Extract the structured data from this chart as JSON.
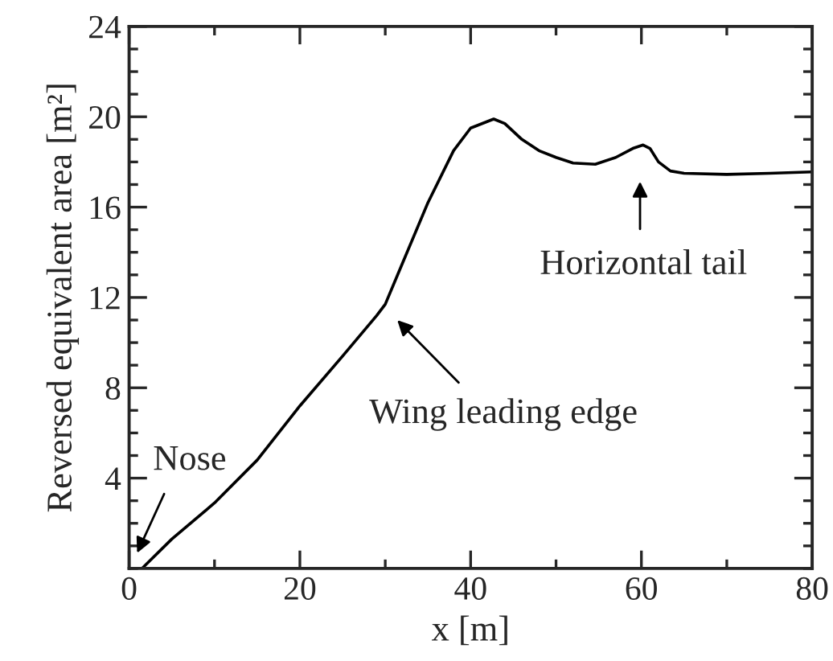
{
  "chart_data": {
    "type": "line",
    "xlabel": "x [m]",
    "ylabel": "Reversed equivalent area [m²]",
    "xlim": [
      0,
      80
    ],
    "ylim": [
      0,
      24
    ],
    "xticks": [
      0,
      {
        "value": 10,
        "label": null
      },
      20,
      {
        "value": 30,
        "label": null
      },
      40,
      {
        "value": 50,
        "label": null
      },
      60,
      {
        "value": 70,
        "label": null
      },
      80
    ],
    "yticks": [
      {
        "value": 0,
        "label": null
      },
      {
        "value": 1,
        "label": null
      },
      {
        "value": 2,
        "label": null
      },
      {
        "value": 3,
        "label": null
      },
      4,
      {
        "value": 5,
        "label": null
      },
      {
        "value": 6,
        "label": null
      },
      {
        "value": 7,
        "label": null
      },
      8,
      {
        "value": 9,
        "label": null
      },
      {
        "value": 10,
        "label": null
      },
      {
        "value": 11,
        "label": null
      },
      12,
      {
        "value": 13,
        "label": null
      },
      {
        "value": 14,
        "label": null
      },
      {
        "value": 15,
        "label": null
      },
      16,
      {
        "value": 17,
        "label": null
      },
      {
        "value": 18,
        "label": null
      },
      {
        "value": 19,
        "label": null
      },
      20,
      {
        "value": 21,
        "label": null
      },
      {
        "value": 22,
        "label": null
      },
      {
        "value": 23,
        "label": null
      },
      24
    ],
    "grid": false,
    "legend": false,
    "marker": "none",
    "line_style": "solid",
    "series": [
      {
        "color": "#000000",
        "x": [
          1.5,
          5,
          10,
          15,
          20,
          25,
          29,
          30,
          32,
          35,
          38,
          40,
          42.7,
          44,
          46,
          48,
          50,
          52,
          54.6,
          57,
          59,
          60.2,
          61,
          62,
          63.4,
          65,
          70,
          75,
          80
        ],
        "values": [
          0,
          1.3,
          2.9,
          4.8,
          7.2,
          9.4,
          11.2,
          11.7,
          13.5,
          16.2,
          18.5,
          19.5,
          19.9,
          19.7,
          19.0,
          18.5,
          18.2,
          17.95,
          17.9,
          18.2,
          18.6,
          18.75,
          18.6,
          18.0,
          17.6,
          17.5,
          17.45,
          17.5,
          17.56
        ]
      }
    ],
    "annotations": [
      "Nose",
      "Wing leading edge",
      "Horizontal tail"
    ]
  }
}
